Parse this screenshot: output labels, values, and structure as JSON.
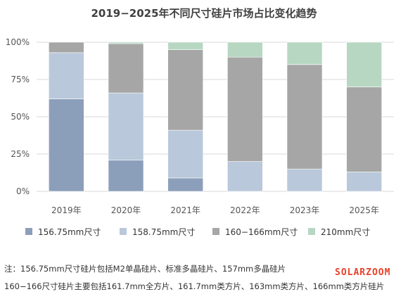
{
  "chart_data": {
    "type": "bar",
    "stacked": true,
    "title": "2019−2025年不同尺寸硅片市场占比变化趋势",
    "categories": [
      "2019年",
      "2020年",
      "2021年",
      "2022年",
      "2023年",
      "2025年"
    ],
    "y_ticks": [
      "0%",
      "25%",
      "50%",
      "75%",
      "100%"
    ],
    "ylim": [
      0,
      100
    ],
    "grid": true,
    "legend_position": "bottom",
    "series": [
      {
        "name": "156.75mm尺寸",
        "color": "#8c9fba",
        "values": [
          62,
          21,
          9,
          0,
          0,
          0
        ]
      },
      {
        "name": "158.75mm尺寸",
        "color": "#b9c8da",
        "values": [
          31,
          45,
          32,
          20,
          15,
          13
        ]
      },
      {
        "name": "160−166mm尺寸",
        "color": "#a6a6a6",
        "values": [
          7,
          33,
          54,
          70,
          70,
          57
        ]
      },
      {
        "name": "210mm尺寸",
        "color": "#b7d7c3",
        "values": [
          0,
          1,
          5,
          10,
          15,
          30
        ]
      }
    ]
  },
  "notes": {
    "line1": "注：156.75mm尺寸硅片包括M2单晶硅片、标准多晶硅片、157mm多晶硅片",
    "line2": "160−166尺寸硅片主要包括161.7mm全方片、161.7mm类方片、163mm类方片、166mm类方片硅片"
  },
  "watermark": "SOLARZOOM"
}
